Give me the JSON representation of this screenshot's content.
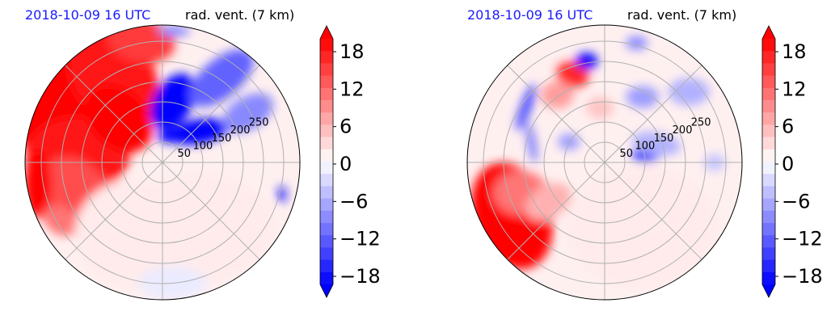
{
  "figure": {
    "panels": [
      {
        "id": "left",
        "date_label": "2018-10-09 16 UTC",
        "var_label": "rad. vent. (7 km)",
        "radial_ticks": [
          "50",
          "100",
          "150",
          "200",
          "250"
        ],
        "blobs": [
          {
            "a": 152,
            "r": 0.8,
            "rx": 0.55,
            "ry": 0.38,
            "rot": 30,
            "level": 13
          },
          {
            "a": 120,
            "r": 0.72,
            "rx": 0.4,
            "ry": 0.3,
            "rot": 60,
            "level": 12
          },
          {
            "a": 175,
            "r": 0.62,
            "rx": 0.38,
            "ry": 0.28,
            "rot": 0,
            "level": 12
          },
          {
            "a": 200,
            "r": 0.68,
            "rx": 0.3,
            "ry": 0.24,
            "rot": 45,
            "level": 9
          },
          {
            "a": 100,
            "r": 0.9,
            "rx": 0.25,
            "ry": 0.16,
            "rot": 10,
            "level": 10
          },
          {
            "a": 135,
            "r": 0.45,
            "rx": 0.28,
            "ry": 0.2,
            "rot": 45,
            "level": 13
          },
          {
            "a": 190,
            "r": 0.92,
            "rx": 0.1,
            "ry": 0.25,
            "rot": 0,
            "level": 13
          },
          {
            "a": 210,
            "r": 0.85,
            "rx": 0.14,
            "ry": 0.1,
            "rot": 30,
            "level": 7
          },
          {
            "a": 80,
            "r": 0.45,
            "rx": 0.22,
            "ry": 0.14,
            "rot": -60,
            "level": -13
          },
          {
            "a": 40,
            "r": 0.35,
            "rx": 0.22,
            "ry": 0.09,
            "rot": -10,
            "level": -13
          },
          {
            "a": 55,
            "r": 0.75,
            "rx": 0.28,
            "ry": 0.14,
            "rot": -40,
            "level": -8
          },
          {
            "a": 30,
            "r": 0.72,
            "rx": 0.2,
            "ry": 0.12,
            "rot": -30,
            "level": -6
          },
          {
            "a": 72,
            "r": 0.2,
            "rx": 0.1,
            "ry": 0.05,
            "rot": 0,
            "level": -13
          },
          {
            "a": 345,
            "r": 0.9,
            "rx": 0.03,
            "ry": 0.06,
            "rot": 0,
            "level": -12
          },
          {
            "a": 85,
            "r": 0.96,
            "rx": 0.12,
            "ry": 0.04,
            "rot": 0,
            "level": -6
          },
          {
            "a": 300,
            "r": 0.55,
            "rx": 0.55,
            "ry": 0.4,
            "rot": 0,
            "level": 1
          },
          {
            "a": 250,
            "r": 0.55,
            "rx": 0.45,
            "ry": 0.4,
            "rot": 0,
            "level": 1
          },
          {
            "a": 275,
            "r": 0.88,
            "rx": 0.25,
            "ry": 0.12,
            "rot": 0,
            "level": -1
          }
        ]
      },
      {
        "id": "right",
        "date_label": "2018-10-09 16 UTC",
        "var_label": "rad. vent. (7 km)",
        "radial_ticks": [
          "50",
          "100",
          "150",
          "200",
          "250"
        ],
        "blobs": [
          {
            "a": 210,
            "r": 0.78,
            "rx": 0.28,
            "ry": 0.4,
            "rot": -20,
            "level": 13
          },
          {
            "a": 200,
            "r": 0.65,
            "rx": 0.2,
            "ry": 0.16,
            "rot": 0,
            "level": 7
          },
          {
            "a": 215,
            "r": 0.5,
            "rx": 0.18,
            "ry": 0.12,
            "rot": -30,
            "level": 4
          },
          {
            "a": 110,
            "r": 0.68,
            "rx": 0.12,
            "ry": 0.09,
            "rot": 20,
            "level": 11
          },
          {
            "a": 100,
            "r": 0.75,
            "rx": 0.08,
            "ry": 0.06,
            "rot": 0,
            "level": -13
          },
          {
            "a": 125,
            "r": 0.6,
            "rx": 0.12,
            "ry": 0.1,
            "rot": 0,
            "level": 5
          },
          {
            "a": 95,
            "r": 0.4,
            "rx": 0.1,
            "ry": 0.08,
            "rot": 0,
            "level": 3
          },
          {
            "a": 145,
            "r": 0.7,
            "rx": 0.04,
            "ry": 0.18,
            "rot": 20,
            "level": -9
          },
          {
            "a": 165,
            "r": 0.55,
            "rx": 0.03,
            "ry": 0.15,
            "rot": -10,
            "level": -7
          },
          {
            "a": 10,
            "r": 0.3,
            "rx": 0.1,
            "ry": 0.05,
            "rot": 0,
            "level": -10
          },
          {
            "a": 20,
            "r": 0.4,
            "rx": 0.18,
            "ry": 0.08,
            "rot": 10,
            "level": -4
          },
          {
            "a": 60,
            "r": 0.55,
            "rx": 0.12,
            "ry": 0.08,
            "rot": 0,
            "level": -5
          },
          {
            "a": 40,
            "r": 0.8,
            "rx": 0.15,
            "ry": 0.1,
            "rot": 0,
            "level": -4
          },
          {
            "a": 75,
            "r": 0.9,
            "rx": 0.08,
            "ry": 0.05,
            "rot": 0,
            "level": -6
          },
          {
            "a": 150,
            "r": 0.3,
            "rx": 0.08,
            "ry": 0.06,
            "rot": 0,
            "level": -5
          },
          {
            "a": 300,
            "r": 0.55,
            "rx": 0.55,
            "ry": 0.45,
            "rot": 0,
            "level": 1
          },
          {
            "a": 0,
            "r": 0.8,
            "rx": 0.08,
            "ry": 0.06,
            "rot": 0,
            "level": -3
          }
        ]
      }
    ],
    "colorbar": {
      "tick_labels": [
        "18",
        "12",
        "6",
        "0",
        "−6",
        "−12",
        "−18"
      ]
    },
    "colors": {
      "red": "#ff0000",
      "blue": "#0000ff",
      "grid": "#b0b0b0",
      "date_label": "#1a1aff"
    }
  },
  "chart_data": [
    {
      "type": "heatmap",
      "projection": "polar",
      "title": "",
      "date_label": "2018-10-09 16 UTC",
      "variable_label": "rad. vent. (7 km)",
      "radial_ticks": [
        50,
        100,
        150,
        200,
        250
      ],
      "colorbar": {
        "ticks": [
          -18,
          -12,
          -6,
          0,
          6,
          12,
          18
        ],
        "range": [
          -20,
          20
        ],
        "extend": "both",
        "colormap": "bwr"
      }
    },
    {
      "type": "heatmap",
      "projection": "polar",
      "title": "",
      "date_label": "2018-10-09 16 UTC",
      "variable_label": "rad. vent. (7 km)",
      "radial_ticks": [
        50,
        100,
        150,
        200,
        250
      ],
      "colorbar": {
        "ticks": [
          -18,
          -12,
          -6,
          0,
          6,
          12,
          18
        ],
        "range": [
          -20,
          20
        ],
        "extend": "both",
        "colormap": "bwr"
      }
    }
  ]
}
